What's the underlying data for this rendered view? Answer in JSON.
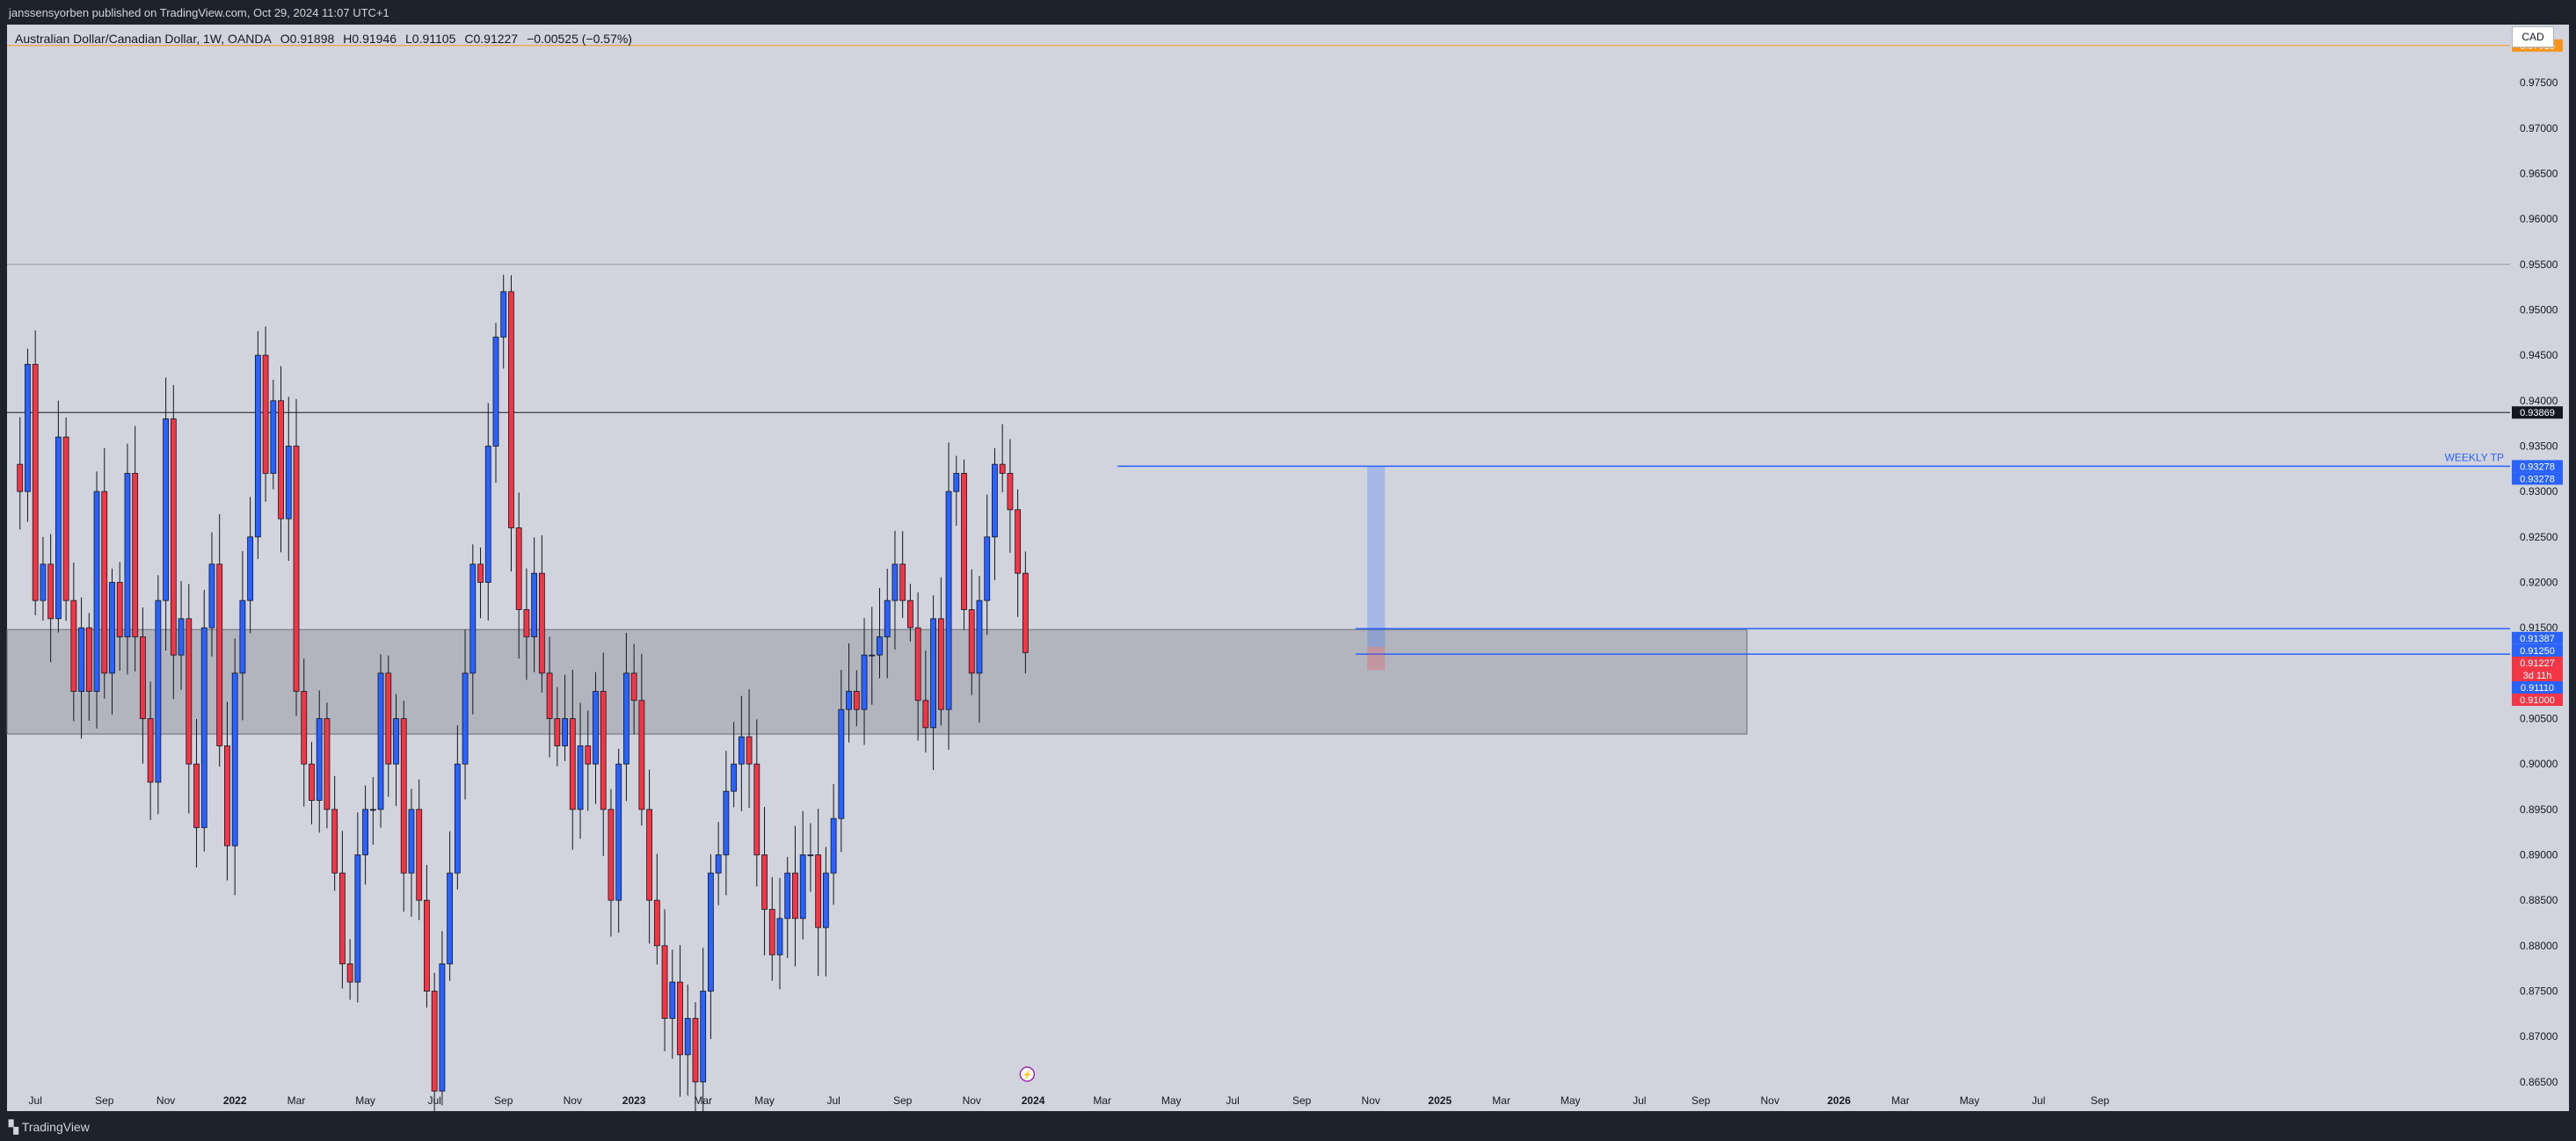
{
  "header": {
    "published_text": "janssensyorben published on TradingView.com, Oct 29, 2024 11:07 UTC+1"
  },
  "legend": {
    "symbol": "Australian Dollar/Canadian Dollar, 1W, OANDA",
    "open": "O0.91898",
    "high": "H0.91946",
    "low": "L0.91105",
    "close": "C0.91227",
    "change": "−0.00525 (−0.57%)"
  },
  "currency": "CAD",
  "footer": {
    "brand": "TradingView",
    "logo_icon": "tradingview-logo-icon"
  },
  "colors": {
    "up_candle": "#2962ff",
    "down_candle": "#f23645",
    "background": "#d1d4dc",
    "zone": "#b2b5be",
    "line_blue": "#2962ff",
    "orange_line": "#f7931a"
  },
  "chart_data": {
    "type": "candlestick",
    "title": "Australian Dollar/Canadian Dollar, 1W, OANDA",
    "ylim": [
      0.8645,
      0.9814
    ],
    "y_ticks": [
      "0.97500",
      "0.97000",
      "0.96500",
      "0.96000",
      "0.95500",
      "0.95000",
      "0.94500",
      "0.94000",
      "0.93500",
      "0.93000",
      "0.92500",
      "0.92000",
      "0.91500",
      "0.91000",
      "0.90500",
      "0.90000",
      "0.89500",
      "0.89000",
      "0.88500",
      "0.88000",
      "0.87500",
      "0.87000",
      "0.86500"
    ],
    "x_ticks": [
      {
        "label": "Jul",
        "bar": 3
      },
      {
        "label": "Sep",
        "bar": 12
      },
      {
        "label": "Nov",
        "bar": 20
      },
      {
        "label": "2022",
        "bar": 29,
        "bold": true
      },
      {
        "label": "Mar",
        "bar": 37
      },
      {
        "label": "May",
        "bar": 46
      },
      {
        "label": "Jul",
        "bar": 55
      },
      {
        "label": "Sep",
        "bar": 64
      },
      {
        "label": "Nov",
        "bar": 73
      },
      {
        "label": "2023",
        "bar": 81,
        "bold": true
      },
      {
        "label": "Mar",
        "bar": 90
      },
      {
        "label": "May",
        "bar": 98
      },
      {
        "label": "Jul",
        "bar": 107
      },
      {
        "label": "Sep",
        "bar": 116
      },
      {
        "label": "Nov",
        "bar": 125
      },
      {
        "label": "2024",
        "bar": 133,
        "bold": true
      },
      {
        "label": "Mar",
        "bar": 142
      },
      {
        "label": "May",
        "bar": 151
      },
      {
        "label": "Jul",
        "bar": 159
      },
      {
        "label": "Sep",
        "bar": 168
      },
      {
        "label": "Nov",
        "bar": 177
      },
      {
        "label": "2025",
        "bar": 186,
        "bold": true
      },
      {
        "label": "Mar",
        "bar": 194
      },
      {
        "label": "May",
        "bar": 203
      },
      {
        "label": "Jul",
        "bar": 212
      },
      {
        "label": "Sep",
        "bar": 220
      },
      {
        "label": "Nov",
        "bar": 229
      },
      {
        "label": "2026",
        "bar": 238,
        "bold": true
      },
      {
        "label": "Mar",
        "bar": 246
      },
      {
        "label": "May",
        "bar": 255
      },
      {
        "label": "Jul",
        "bar": 264
      },
      {
        "label": "Sep",
        "bar": 272
      }
    ],
    "path": [
      0.933,
      0.93,
      0.944,
      0.918,
      0.922,
      0.916,
      0.936,
      0.918,
      0.908,
      0.915,
      0.908,
      0.93,
      0.91,
      0.92,
      0.914,
      0.932,
      0.914,
      0.905,
      0.898,
      0.918,
      0.938,
      0.912,
      0.916,
      0.9,
      0.893,
      0.915,
      0.922,
      0.902,
      0.891,
      0.91,
      0.918,
      0.925,
      0.945,
      0.932,
      0.94,
      0.927,
      0.935,
      0.908,
      0.9,
      0.896,
      0.905,
      0.895,
      0.888,
      0.878,
      0.876,
      0.89,
      0.895,
      0.895,
      0.91,
      0.9,
      0.905,
      0.888,
      0.895,
      0.885,
      0.875,
      0.864,
      0.878,
      0.888,
      0.9,
      0.91,
      0.922,
      0.92,
      0.935,
      0.947,
      0.952,
      0.926,
      0.917,
      0.914,
      0.921,
      0.91,
      0.905,
      0.902,
      0.905,
      0.895,
      0.902,
      0.9,
      0.908,
      0.895,
      0.885,
      0.9,
      0.91,
      0.907,
      0.895,
      0.885,
      0.88,
      0.872,
      0.876,
      0.868,
      0.872,
      0.865,
      0.875,
      0.888,
      0.89,
      0.897,
      0.9,
      0.903,
      0.9,
      0.89,
      0.884,
      0.879,
      0.883,
      0.888,
      0.883,
      0.89,
      0.89,
      0.882,
      0.888,
      0.894,
      0.906,
      0.908,
      0.906,
      0.912,
      0.912,
      0.914,
      0.918,
      0.922,
      0.918,
      0.915,
      0.907,
      0.904,
      0.916,
      0.906,
      0.93,
      0.932,
      0.917,
      0.91,
      0.918,
      0.925,
      0.933,
      0.932,
      0.928,
      0.921,
      0.91227
    ],
    "horizontal_lines": [
      {
        "price": 0.9791,
        "color": "#f7931a",
        "label": "0.97910"
      },
      {
        "price": 0.9387,
        "color": "#131722",
        "label": "0.93869"
      },
      {
        "price": 0.955,
        "color": "#9598a1"
      }
    ],
    "zones": [
      {
        "from_bar": 0,
        "to_bar": 226,
        "price_top": 0.9148,
        "price_bottom": 0.9033
      }
    ],
    "blue_lines": [
      {
        "price": 0.93278,
        "from_bar": 144,
        "to_bar": 283,
        "label": "WEEKLY TP",
        "label_text": "WEEKLY TP"
      },
      {
        "price": 0.9149,
        "from_bar": 175,
        "to_bar": 283
      },
      {
        "price": 0.9121,
        "from_bar": 175,
        "to_bar": 283
      }
    ],
    "position_box": {
      "bar": 177,
      "entry": 0.9129,
      "target": 0.93278,
      "stop": 0.9115
    },
    "price_badges": [
      {
        "price": 0.93278,
        "text": "0.93278",
        "bg": "#2962ff",
        "fg": "#ffffff"
      },
      {
        "price": 0.93226,
        "text": "0.93278",
        "bg": "#2962ff",
        "fg": "#ffffff",
        "offset": 1
      },
      {
        "price": 0.91387,
        "text": "0.91387",
        "bg": "#2962ff",
        "fg": "#ffffff"
      },
      {
        "price": 0.9125,
        "text": "0.91250",
        "bg": "#2962ff",
        "fg": "#ffffff",
        "offset": 1
      },
      {
        "price": 0.91227,
        "text": "0.91227",
        "bg": "#f23645",
        "fg": "#ffffff",
        "offset": 2
      },
      {
        "price": 0.9111,
        "text": "3d 11h",
        "bg": "#f23645",
        "fg": "#ffffff",
        "offset": 3
      },
      {
        "price": 0.9111,
        "text": "0.91110",
        "bg": "#2962ff",
        "fg": "#ffffff",
        "offset": 4
      },
      {
        "price": 0.91,
        "text": "0.91000",
        "bg": "#f23645",
        "fg": "#ffffff",
        "offset": 5
      }
    ],
    "countdown": "3d 11h",
    "weekly_tp_label": "WEEKLY TP",
    "dividend_icon": "lightning-icon"
  }
}
